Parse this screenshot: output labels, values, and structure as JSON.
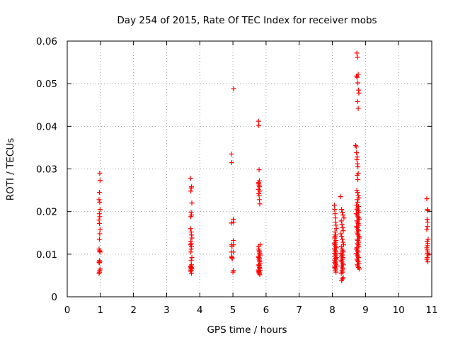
{
  "chart_data": {
    "type": "scatter",
    "title": "Day 254 of 2015, Rate Of TEC Index for receiver mobs",
    "xlabel": "GPS time / hours",
    "ylabel": "ROTI / TECUs",
    "xlim": [
      0,
      11
    ],
    "ylim": [
      0,
      0.06
    ],
    "xticks": [
      0,
      1,
      2,
      3,
      4,
      5,
      6,
      7,
      8,
      9,
      10,
      11
    ],
    "yticks": [
      0,
      0.01,
      0.02,
      0.03,
      0.04,
      0.05,
      0.06
    ],
    "xtick_labels": [
      "0",
      "1",
      "2",
      "3",
      "4",
      "5",
      "6",
      "7",
      "8",
      "9",
      "10",
      "11"
    ],
    "ytick_labels": [
      "0",
      "0.01",
      "0.02",
      "0.03",
      "0.04",
      "0.05",
      "0.06"
    ],
    "grid": true,
    "marker": "+",
    "marker_color": "#ff0000",
    "series": [
      {
        "name": "ROTI",
        "x": [
          0.98,
          0.99,
          0.97,
          0.96,
          0.98,
          0.99,
          0.97,
          0.98,
          0.96,
          0.97,
          0.99,
          0.98,
          0.97,
          0.96,
          0.98,
          0.99,
          0.97,
          0.98,
          0.96,
          0.97,
          0.99,
          0.98,
          0.97,
          0.96,
          0.98,
          3.72,
          3.75,
          3.74,
          3.73,
          3.76,
          3.74,
          3.75,
          3.73,
          3.72,
          3.74,
          3.75,
          3.76,
          3.73,
          3.74,
          3.72,
          3.75,
          3.74,
          3.73,
          3.76,
          3.74,
          3.75,
          3.73,
          3.72,
          3.74,
          3.75,
          3.76,
          3.73,
          3.74,
          3.72,
          3.75,
          4.95,
          4.96,
          4.95,
          4.96,
          4.97,
          4.95,
          4.96,
          4.97,
          4.98,
          5.02,
          5.01,
          5.02,
          5.01,
          5.02,
          5.01,
          5.02,
          5.0,
          5.77,
          5.78,
          5.79,
          5.8,
          5.77,
          5.78,
          5.79,
          5.8,
          5.77,
          5.81,
          5.78,
          5.79,
          5.8,
          5.81,
          5.82,
          5.77,
          5.78,
          5.79,
          5.8,
          5.81,
          5.82,
          5.77,
          5.78,
          5.79,
          5.8,
          5.81,
          5.82,
          5.78,
          5.79,
          5.8,
          5.81,
          5.77,
          5.78,
          5.79,
          5.8,
          5.81,
          5.82,
          5.78,
          5.79,
          5.8,
          8.06,
          8.07,
          8.08,
          8.09,
          8.1,
          8.11,
          8.12,
          8.08,
          8.1,
          8.07,
          8.11,
          8.09,
          8.08,
          8.1,
          8.12,
          8.06,
          8.09,
          8.11,
          8.07,
          8.1,
          8.08,
          8.12,
          8.09,
          8.11,
          8.07,
          8.1,
          8.08,
          8.09,
          8.11,
          8.12,
          8.07,
          8.08,
          8.1,
          8.09,
          8.11,
          8.06,
          8.08,
          8.1,
          8.25,
          8.28,
          8.3,
          8.32,
          8.35,
          8.27,
          8.29,
          8.31,
          8.33,
          8.26,
          8.28,
          8.3,
          8.32,
          8.34,
          8.27,
          8.29,
          8.31,
          8.33,
          8.26,
          8.3,
          8.28,
          8.32,
          8.3,
          8.27,
          8.29,
          8.31,
          8.33,
          8.28,
          8.3,
          8.32,
          8.29,
          8.31,
          8.27,
          8.33,
          8.3,
          8.28,
          8.7,
          8.72,
          8.73,
          8.75,
          8.74,
          8.76,
          8.77,
          8.78,
          8.75,
          8.77,
          8.74,
          8.76,
          8.78,
          8.8,
          8.75,
          8.77,
          8.73,
          8.79,
          8.76,
          8.74,
          8.78,
          8.8,
          8.72,
          8.75,
          8.77,
          8.79,
          8.81,
          8.74,
          8.76,
          8.78,
          8.8,
          8.73,
          8.75,
          8.77,
          8.79,
          8.74,
          8.76,
          8.78,
          8.8,
          8.82,
          8.75,
          8.77,
          8.79,
          8.76,
          8.78,
          8.8,
          8.74,
          8.72,
          8.76,
          8.78,
          8.73,
          8.75,
          8.77,
          8.79,
          8.74,
          8.76,
          8.78,
          8.8,
          8.75,
          8.77,
          8.79,
          8.81,
          8.74,
          8.76,
          8.78,
          8.73,
          8.75,
          8.77,
          8.79,
          8.8,
          8.76,
          8.78,
          10.85,
          10.87,
          10.88,
          10.86,
          10.88,
          10.87,
          10.85,
          10.89,
          10.86,
          10.88,
          10.87,
          10.85,
          10.86,
          10.88,
          10.87,
          10.89,
          10.86,
          10.85,
          10.88
        ],
        "y": [
          0.029,
          0.0273,
          0.0245,
          0.0228,
          0.0222,
          0.0205,
          0.0195,
          0.0188,
          0.018,
          0.0172,
          0.0158,
          0.0148,
          0.0135,
          0.0112,
          0.0108,
          0.0105,
          0.0085,
          0.0082,
          0.0081,
          0.008,
          0.0065,
          0.0062,
          0.0058,
          0.0055,
          0.0107,
          0.0278,
          0.0258,
          0.0255,
          0.0248,
          0.022,
          0.0198,
          0.0192,
          0.0188,
          0.016,
          0.0152,
          0.0145,
          0.0138,
          0.013,
          0.0125,
          0.0122,
          0.0118,
          0.0112,
          0.0105,
          0.0092,
          0.0085,
          0.0075,
          0.0072,
          0.007,
          0.0069,
          0.0068,
          0.0067,
          0.0065,
          0.0062,
          0.006,
          0.0055,
          0.0335,
          0.0315,
          0.0173,
          0.0122,
          0.0118,
          0.0105,
          0.0095,
          0.0092,
          0.0089,
          0.0488,
          0.0182,
          0.0175,
          0.0132,
          0.0122,
          0.0105,
          0.0062,
          0.0058,
          0.0412,
          0.0402,
          0.0298,
          0.0272,
          0.0268,
          0.0265,
          0.0262,
          0.0258,
          0.0252,
          0.0248,
          0.0242,
          0.0238,
          0.0228,
          0.0218,
          0.0122,
          0.0118,
          0.0112,
          0.0108,
          0.0105,
          0.0102,
          0.0098,
          0.0095,
          0.0092,
          0.0088,
          0.0085,
          0.0082,
          0.0078,
          0.0075,
          0.0072,
          0.0069,
          0.0066,
          0.0063,
          0.006,
          0.0058,
          0.0055,
          0.0052,
          0.0062,
          0.0056,
          0.0074,
          0.0091,
          0.0215,
          0.0205,
          0.0195,
          0.0185,
          0.0175,
          0.0168,
          0.016,
          0.0152,
          0.0145,
          0.0138,
          0.0132,
          0.0128,
          0.0122,
          0.0118,
          0.0115,
          0.0112,
          0.0108,
          0.0105,
          0.0102,
          0.0098,
          0.0095,
          0.0092,
          0.009,
          0.0088,
          0.0085,
          0.0082,
          0.008,
          0.0078,
          0.0075,
          0.0072,
          0.007,
          0.0068,
          0.0065,
          0.0062,
          0.0058,
          0.0125,
          0.0142,
          0.0102,
          0.0235,
          0.0205,
          0.0198,
          0.0192,
          0.0185,
          0.0178,
          0.017,
          0.0162,
          0.0155,
          0.0148,
          0.0142,
          0.0135,
          0.0128,
          0.0122,
          0.0118,
          0.0112,
          0.0108,
          0.0105,
          0.0102,
          0.0098,
          0.0095,
          0.0092,
          0.0088,
          0.0085,
          0.0082,
          0.0078,
          0.0075,
          0.0072,
          0.0068,
          0.0065,
          0.0062,
          0.0058,
          0.0055,
          0.0045,
          0.0042,
          0.0038,
          0.0355,
          0.0352,
          0.0338,
          0.0328,
          0.0322,
          0.0312,
          0.0305,
          0.029,
          0.0285,
          0.0275,
          0.025,
          0.0245,
          0.0238,
          0.0232,
          0.0228,
          0.0222,
          0.0215,
          0.0212,
          0.0208,
          0.0205,
          0.0202,
          0.0198,
          0.0195,
          0.0192,
          0.0188,
          0.0185,
          0.0182,
          0.0178,
          0.0175,
          0.0172,
          0.0168,
          0.0165,
          0.0162,
          0.0158,
          0.0155,
          0.0152,
          0.0148,
          0.0145,
          0.0142,
          0.0138,
          0.0135,
          0.0132,
          0.0128,
          0.0125,
          0.0122,
          0.0118,
          0.0115,
          0.0112,
          0.0108,
          0.0105,
          0.0102,
          0.0098,
          0.0095,
          0.0092,
          0.0088,
          0.0085,
          0.0082,
          0.0078,
          0.0075,
          0.0072,
          0.0069,
          0.0065,
          0.0572,
          0.0562,
          0.0522,
          0.0518,
          0.0515,
          0.0502,
          0.0485,
          0.0478,
          0.0458,
          0.0442,
          0.023,
          0.0205,
          0.0202,
          0.0182,
          0.0175,
          0.0165,
          0.0158,
          0.0135,
          0.013,
          0.0125,
          0.012,
          0.0115,
          0.011,
          0.0105,
          0.0102,
          0.0098,
          0.0092,
          0.0088,
          0.0082
        ]
      }
    ]
  }
}
